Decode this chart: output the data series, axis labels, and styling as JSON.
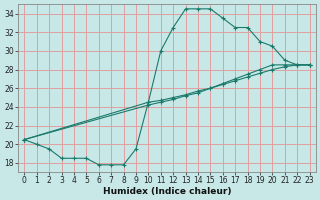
{
  "xlabel": "Humidex (Indice chaleur)",
  "background_color": "#c8e8e8",
  "grid_color": "#e0a0a0",
  "line_color": "#1a7a6a",
  "xlim": [
    -0.5,
    23.5
  ],
  "ylim": [
    17.0,
    35.0
  ],
  "xticks": [
    0,
    1,
    2,
    3,
    4,
    5,
    6,
    7,
    8,
    9,
    10,
    11,
    12,
    13,
    14,
    15,
    16,
    17,
    18,
    19,
    20,
    21,
    22,
    23
  ],
  "yticks": [
    18,
    20,
    22,
    24,
    26,
    28,
    30,
    32,
    34
  ],
  "curve1_x": [
    0,
    1,
    2,
    3,
    4,
    5,
    6,
    7,
    8,
    9,
    10,
    11,
    12,
    13,
    14,
    15,
    16,
    17,
    18,
    19,
    20,
    21,
    22,
    23
  ],
  "curve1_y": [
    20.5,
    20.0,
    19.5,
    18.5,
    18.5,
    18.5,
    17.8,
    17.8,
    17.8,
    19.5,
    24.5,
    30.0,
    32.5,
    34.5,
    34.5,
    34.5,
    33.5,
    32.5,
    32.5,
    31.0,
    30.5,
    29.0,
    28.5,
    28.5
  ],
  "curve2_x": [
    0,
    10,
    11,
    12,
    13,
    14,
    15,
    16,
    17,
    18,
    19,
    20,
    21,
    22,
    23
  ],
  "curve2_y": [
    20.5,
    24.5,
    24.7,
    25.0,
    25.3,
    25.7,
    26.0,
    26.4,
    26.8,
    27.2,
    27.6,
    28.0,
    28.3,
    28.5,
    28.5
  ],
  "curve3_x": [
    0,
    10,
    11,
    12,
    13,
    14,
    15,
    16,
    17,
    18,
    19,
    20,
    21,
    22,
    23
  ],
  "curve3_y": [
    20.5,
    24.2,
    24.5,
    24.8,
    25.2,
    25.5,
    26.0,
    26.5,
    27.0,
    27.5,
    28.0,
    28.5,
    28.5,
    28.5,
    28.5
  ]
}
